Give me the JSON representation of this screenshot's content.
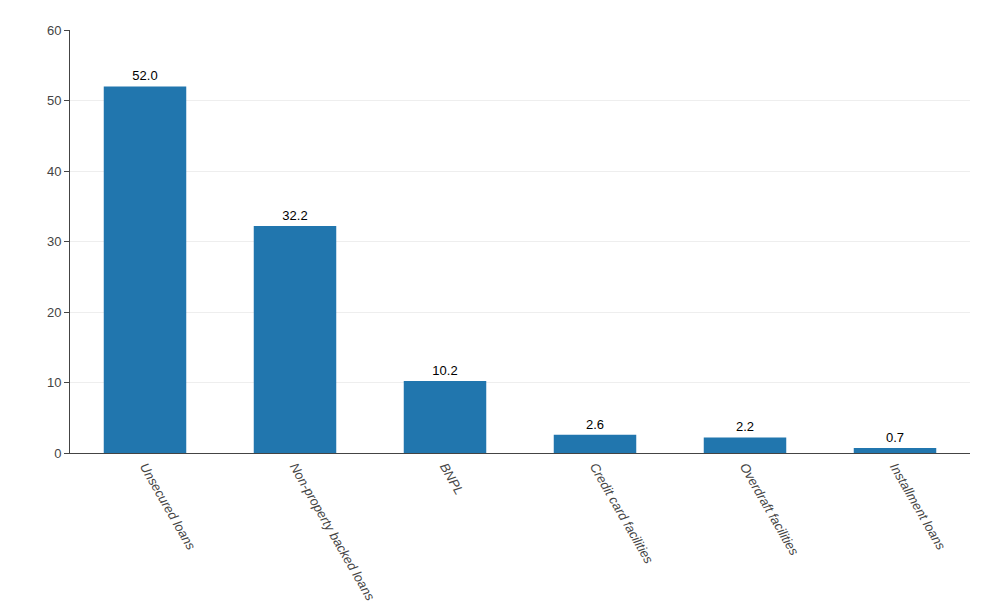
{
  "chart_data": {
    "type": "bar",
    "categories": [
      "Unsecured loans",
      "Non-property backed loans",
      "BNPL",
      "Credit card facilities",
      "Overdraft facilities",
      "Installment loans"
    ],
    "values": [
      52.0,
      32.2,
      10.2,
      2.6,
      2.2,
      0.7
    ],
    "value_labels": [
      "52.0",
      "32.2",
      "10.2",
      "2.6",
      "2.2",
      "0.7"
    ],
    "color": "#2176ae",
    "ylim": [
      0,
      60
    ],
    "yticks": [
      0,
      10,
      20,
      30,
      40,
      50,
      60
    ],
    "grid": true,
    "data_labels": true
  }
}
